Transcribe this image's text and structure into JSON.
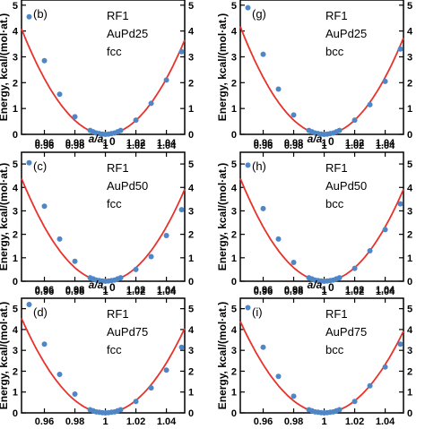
{
  "figure": {
    "y_axis_label": "Energy, kcal/(mol·at.)",
    "x_axis_label": "a/a",
    "x_axis_label_sub": "0"
  },
  "colors": {
    "fit": "#e8322b",
    "points": "#4f86c6",
    "frame": "#000000"
  },
  "chart_data": [
    {
      "type": "scatter",
      "panel": "(b)",
      "label_lines": [
        "RF1",
        "AuPd25",
        "fcc"
      ],
      "xlim": [
        0.945,
        1.052
      ],
      "ylim": [
        0,
        5.2
      ],
      "xticks": [
        0.96,
        0.98,
        1,
        1.02,
        1.04
      ],
      "xtick_labels": [
        "0.96",
        "0.98",
        "1",
        "1.02",
        "1.04"
      ],
      "yticks": [
        0,
        1,
        2,
        3,
        4,
        5
      ],
      "ytick_labels": [
        "0",
        "1",
        "2",
        "3",
        "4",
        "5"
      ],
      "fit_curve": {
        "x0": 1.0,
        "k": 1350
      },
      "x": [
        0.95,
        0.96,
        0.97,
        0.98,
        0.99,
        0.992,
        0.994,
        0.996,
        0.998,
        1.0,
        1.002,
        1.004,
        1.006,
        1.008,
        1.01,
        1.02,
        1.03,
        1.04,
        1.05
      ],
      "y": [
        4.55,
        2.85,
        1.55,
        0.68,
        0.15,
        0.1,
        0.05,
        0.03,
        0.01,
        0.0,
        0.01,
        0.03,
        0.05,
        0.1,
        0.15,
        0.55,
        1.2,
        2.1,
        3.2
      ]
    },
    {
      "type": "scatter",
      "panel": "(g)",
      "label_lines": [
        "RF1",
        "AuPd25",
        "bcc"
      ],
      "xlim": [
        0.945,
        1.052
      ],
      "ylim": [
        0,
        5.2
      ],
      "xticks": [
        0.96,
        0.98,
        1,
        1.02,
        1.04
      ],
      "xtick_labels": [
        "0.96",
        "0.98",
        "1",
        "1.02",
        "1.04"
      ],
      "yticks": [
        0,
        1,
        2,
        3,
        4,
        5
      ],
      "ytick_labels": [
        "0",
        "1",
        "2",
        "3",
        "4",
        "5"
      ],
      "fit_curve": {
        "x0": 1.0,
        "k": 1380
      },
      "x": [
        0.95,
        0.96,
        0.97,
        0.98,
        0.99,
        0.992,
        0.994,
        0.996,
        0.998,
        1.0,
        1.002,
        1.004,
        1.006,
        1.008,
        1.01,
        1.02,
        1.03,
        1.04,
        1.05
      ],
      "y": [
        4.9,
        3.1,
        1.75,
        0.75,
        0.15,
        0.1,
        0.05,
        0.03,
        0.01,
        0.0,
        0.01,
        0.03,
        0.05,
        0.1,
        0.15,
        0.55,
        1.15,
        2.05,
        3.3
      ]
    },
    {
      "type": "scatter",
      "panel": "(c)",
      "label_lines": [
        "RF1",
        "AuPd50",
        "fcc"
      ],
      "xlim": [
        0.945,
        1.052
      ],
      "ylim": [
        0,
        5.5
      ],
      "xticks": [
        0.96,
        0.98,
        1,
        1.02,
        1.04
      ],
      "xtick_labels": [
        "0.96",
        "0.98",
        "1",
        "1.02",
        "1.04"
      ],
      "yticks": [
        0,
        1,
        2,
        3,
        4,
        5
      ],
      "ytick_labels": [
        "0",
        "1",
        "2",
        "3",
        "4",
        "5"
      ],
      "fit_curve": {
        "x0": 1.0,
        "k": 1450
      },
      "x": [
        0.95,
        0.96,
        0.97,
        0.98,
        0.99,
        0.992,
        0.994,
        0.996,
        0.998,
        1.0,
        1.002,
        1.004,
        1.006,
        1.008,
        1.01,
        1.02,
        1.03,
        1.04,
        1.05
      ],
      "y": [
        5.05,
        3.2,
        1.8,
        0.85,
        0.15,
        0.1,
        0.05,
        0.03,
        0.01,
        0.0,
        0.01,
        0.03,
        0.05,
        0.1,
        0.15,
        0.5,
        1.05,
        1.95,
        3.05
      ]
    },
    {
      "type": "scatter",
      "panel": "(h)",
      "label_lines": [
        "RF1",
        "AuPd50",
        "bcc"
      ],
      "xlim": [
        0.945,
        1.052
      ],
      "ylim": [
        0,
        5.5
      ],
      "xticks": [
        0.96,
        0.98,
        1,
        1.02,
        1.04
      ],
      "xtick_labels": [
        "0.96",
        "0.98",
        "1",
        "1.02",
        "1.04"
      ],
      "yticks": [
        0,
        1,
        2,
        3,
        4,
        5
      ],
      "ytick_labels": [
        "0",
        "1",
        "2",
        "3",
        "4",
        "5"
      ],
      "fit_curve": {
        "x0": 1.0,
        "k": 1450
      },
      "x": [
        0.95,
        0.96,
        0.97,
        0.98,
        0.99,
        0.992,
        0.994,
        0.996,
        0.998,
        1.0,
        1.002,
        1.004,
        1.006,
        1.008,
        1.01,
        1.02,
        1.03,
        1.04,
        1.05
      ],
      "y": [
        4.95,
        3.1,
        1.8,
        0.8,
        0.15,
        0.1,
        0.05,
        0.03,
        0.01,
        0.0,
        0.01,
        0.03,
        0.05,
        0.1,
        0.15,
        0.55,
        1.3,
        2.2,
        3.3
      ]
    },
    {
      "type": "scatter",
      "panel": "(d)",
      "label_lines": [
        "RF1",
        "AuPd75",
        "fcc"
      ],
      "xlim": [
        0.945,
        1.052
      ],
      "ylim": [
        0,
        5.5
      ],
      "xticks": [
        0.96,
        0.98,
        1,
        1.02,
        1.04
      ],
      "xtick_labels": [
        "0.96",
        "0.98",
        "1",
        "1.02",
        "1.04"
      ],
      "yticks": [
        0,
        1,
        2,
        3,
        4,
        5
      ],
      "ytick_labels": [
        "0",
        "1",
        "2",
        "3",
        "4",
        "5"
      ],
      "fit_curve": {
        "x0": 1.0,
        "k": 1500
      },
      "x": [
        0.95,
        0.96,
        0.97,
        0.98,
        0.99,
        0.992,
        0.994,
        0.996,
        0.998,
        1.0,
        1.002,
        1.004,
        1.006,
        1.008,
        1.01,
        1.02,
        1.03,
        1.04,
        1.05
      ],
      "y": [
        5.2,
        3.3,
        1.85,
        0.9,
        0.15,
        0.1,
        0.05,
        0.03,
        0.01,
        0.0,
        0.01,
        0.03,
        0.05,
        0.1,
        0.15,
        0.55,
        1.2,
        2.05,
        3.15
      ]
    },
    {
      "type": "scatter",
      "panel": "(i)",
      "label_lines": [
        "RF1",
        "AuPd75",
        "bcc"
      ],
      "xlim": [
        0.945,
        1.052
      ],
      "ylim": [
        0,
        5.5
      ],
      "xticks": [
        0.96,
        0.98,
        1,
        1.02,
        1.04
      ],
      "xtick_labels": [
        "0.96",
        "0.98",
        "1",
        "1.02",
        "1.04"
      ],
      "yticks": [
        0,
        1,
        2,
        3,
        4,
        5
      ],
      "ytick_labels": [
        "0",
        "1",
        "2",
        "3",
        "4",
        "5"
      ],
      "fit_curve": {
        "x0": 1.0,
        "k": 1450
      },
      "x": [
        0.95,
        0.96,
        0.97,
        0.98,
        0.99,
        0.992,
        0.994,
        0.996,
        0.998,
        1.0,
        1.002,
        1.004,
        1.006,
        1.008,
        1.01,
        1.02,
        1.03,
        1.04,
        1.05
      ],
      "y": [
        5.05,
        3.15,
        1.75,
        0.8,
        0.15,
        0.1,
        0.05,
        0.03,
        0.01,
        0.0,
        0.01,
        0.03,
        0.05,
        0.1,
        0.15,
        0.55,
        1.3,
        2.2,
        3.3
      ]
    }
  ]
}
